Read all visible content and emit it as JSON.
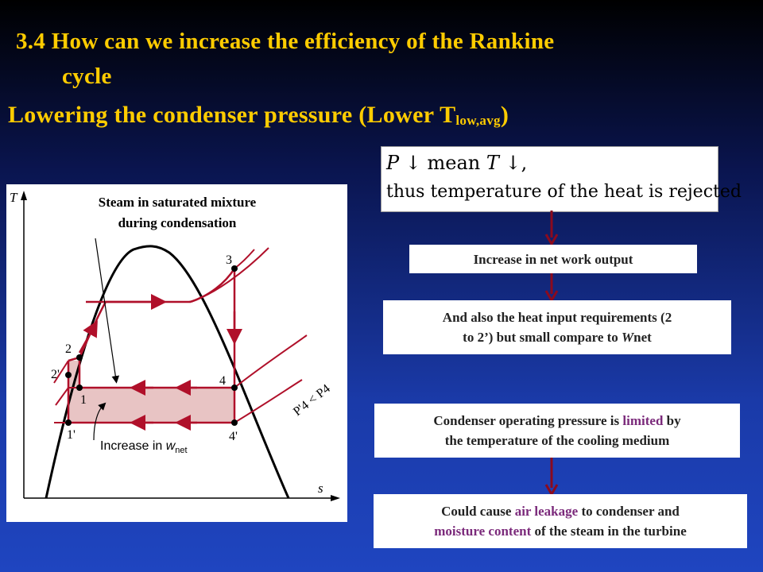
{
  "title": {
    "line1": "3.4 How can we increase the efficiency of the Rankine",
    "line2": "cycle"
  },
  "subtitle": {
    "main": "Lowering the condenser pressure (Lower T",
    "sub": "low,avg",
    "close": ")"
  },
  "formula": {
    "line1_P": "P",
    "line1_mid": " ↓ mean ",
    "line1_T": "T",
    "line1_end": " ↓,",
    "line2": "thus temperature of the heat is rejected"
  },
  "boxes": {
    "net_work": "Increase in net work output",
    "heat_input_line1": "And also the heat input requirements (2",
    "heat_input_line2a": "to 2’) but small compare to ",
    "heat_input_W": "W",
    "heat_input_line2b": "net",
    "limit_a": "Condenser operating pressure is ",
    "limit_hl": "limited",
    "limit_b": " by",
    "limit_line2": "the temperature of the cooling medium",
    "cause_a": "Could cause ",
    "cause_hl1": "air leakage",
    "cause_b": " to condenser and",
    "cause_hl2": "moisture content",
    "cause_c": " of the steam in the turbine"
  },
  "diagram": {
    "axis_t": "T",
    "axis_s": "s",
    "annotation_line1": "Steam in saturated mixture",
    "annotation_line2": "during condensation",
    "pt_1": "1",
    "pt_1p": "1'",
    "pt_2": "2",
    "pt_2p": "2'",
    "pt_3": "3",
    "pt_4": "4",
    "pt_4p": "4'",
    "increase_label": "Increase in ",
    "w_label": "w",
    "net_label": "net",
    "pressure_label": "P'4 < P4",
    "colors": {
      "cycle": "#b0102a",
      "shade": "#e8c4c4",
      "dome": "#000000"
    }
  },
  "colors": {
    "title": "#ffcc00",
    "arrow": "#8b0a1e",
    "highlight": "#7b2a7b"
  }
}
